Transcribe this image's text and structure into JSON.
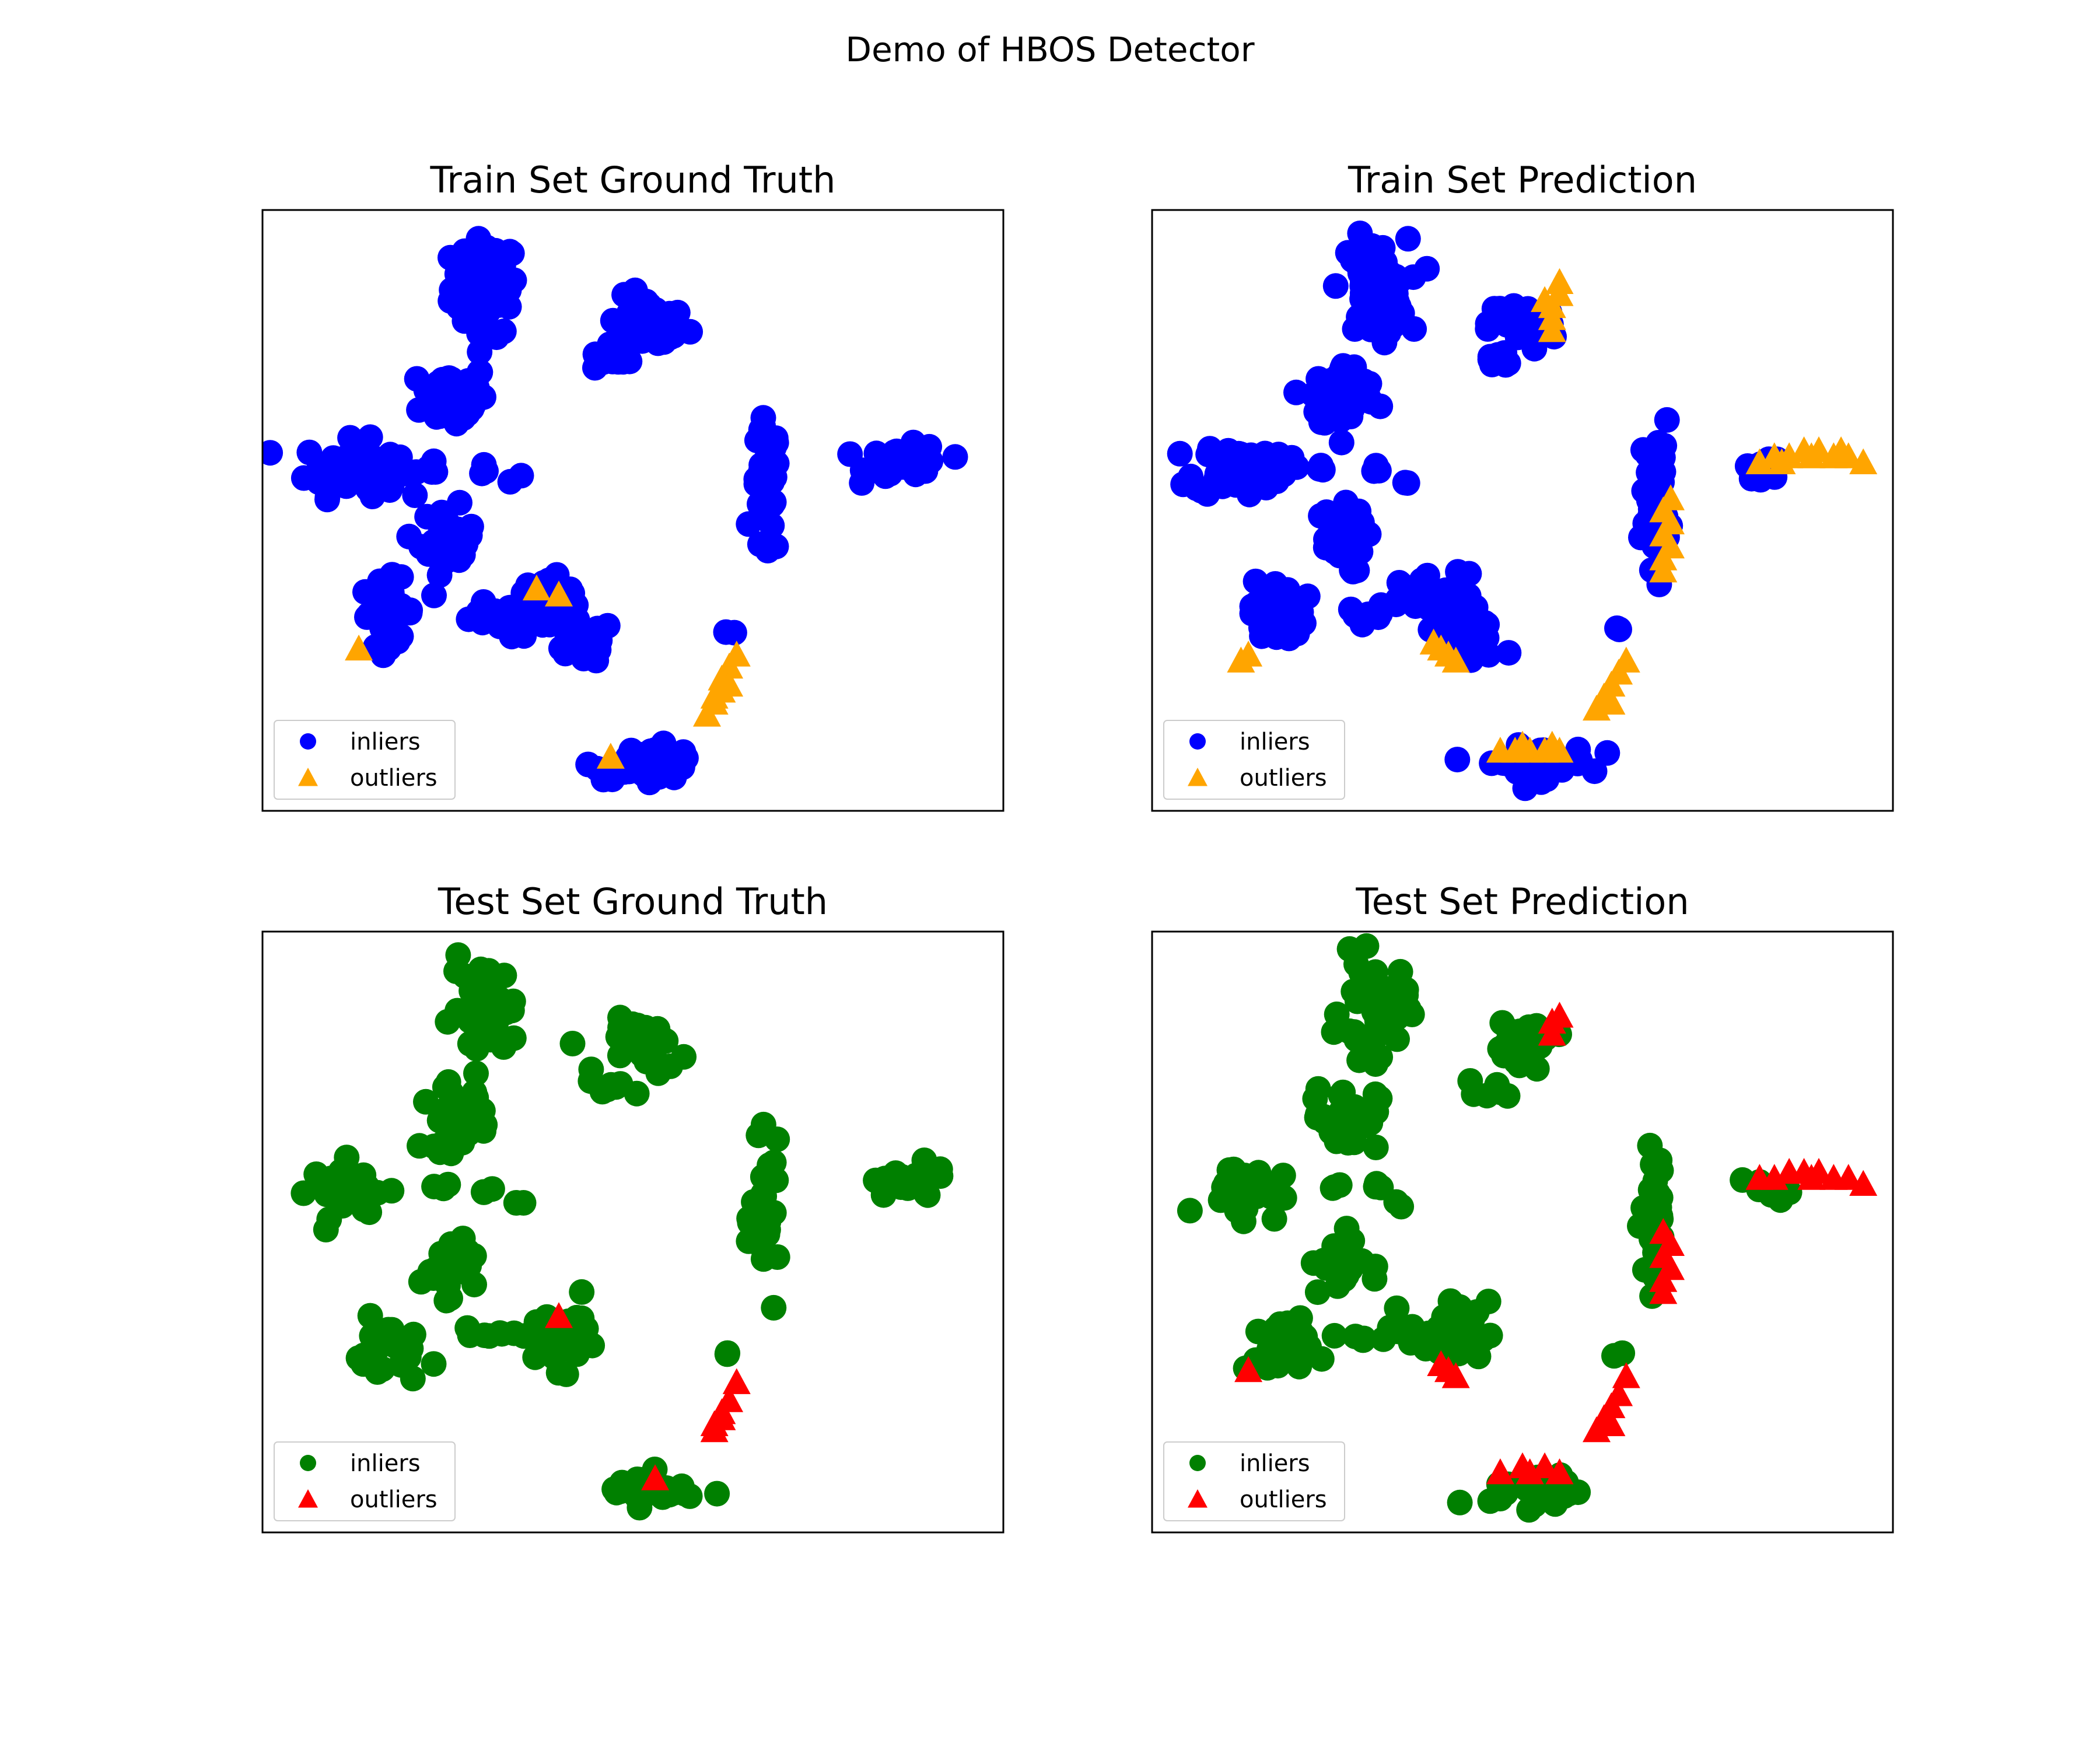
{
  "figure": {
    "title": "Demo of HBOS Detector"
  },
  "colors": {
    "train_inlier": "#0000ff",
    "train_outlier": "#ffa500",
    "test_inlier": "#008000",
    "test_outlier": "#ff0000"
  },
  "chart_data": [
    {
      "type": "scatter",
      "title": "Train Set Ground Truth",
      "xlim": [
        0,
        100
      ],
      "ylim": [
        0,
        100
      ],
      "grid": false,
      "axes_ticks": false,
      "legend": {
        "position": "lower-left",
        "entries": [
          {
            "label": "inliers",
            "marker": "circle",
            "color": "#0000ff"
          },
          {
            "label": "outliers",
            "marker": "triangle",
            "color": "#ffa500"
          }
        ]
      },
      "series": [
        {
          "name": "inliers",
          "marker": "circle",
          "color": "#0000ff",
          "clusters": [
            {
              "cx": 30,
              "cy": 87,
              "rx": 5,
              "ry": 9,
              "n": 70
            },
            {
              "cx": 52,
              "cy": 81,
              "rx": 6,
              "ry": 5,
              "n": 40
            },
            {
              "cx": 47,
              "cy": 75,
              "rx": 3,
              "ry": 2,
              "n": 10
            },
            {
              "cx": 26,
              "cy": 69,
              "rx": 5,
              "ry": 6,
              "n": 55
            },
            {
              "cx": 12,
              "cy": 57,
              "rx": 7,
              "ry": 5,
              "n": 55
            },
            {
              "cx": 23,
              "cy": 57,
              "rx": 1.5,
              "ry": 1.5,
              "n": 4
            },
            {
              "cx": 30,
              "cy": 57,
              "rx": 1.2,
              "ry": 1.5,
              "n": 3
            },
            {
              "cx": 34,
              "cy": 55,
              "rx": 1,
              "ry": 1,
              "n": 2
            },
            {
              "cx": 25,
              "cy": 45,
              "rx": 4,
              "ry": 6,
              "n": 35
            },
            {
              "cx": 17,
              "cy": 33,
              "rx": 4,
              "ry": 6,
              "n": 35
            },
            {
              "cx": 29,
              "cy": 33,
              "rx": 3,
              "ry": 2,
              "n": 8
            },
            {
              "cx": 39,
              "cy": 34,
              "rx": 6,
              "ry": 6,
              "n": 45
            },
            {
              "cx": 43,
              "cy": 28,
              "rx": 5,
              "ry": 4,
              "n": 30
            },
            {
              "cx": 68,
              "cy": 53,
              "rx": 2,
              "ry": 13,
              "n": 40
            },
            {
              "cx": 87,
              "cy": 58,
              "rx": 6,
              "ry": 3,
              "n": 40
            },
            {
              "cx": 63,
              "cy": 30,
              "rx": 1,
              "ry": 1,
              "n": 2
            },
            {
              "cx": 52,
              "cy": 8,
              "rx": 8,
              "ry": 3,
              "n": 45
            }
          ]
        },
        {
          "name": "outliers",
          "marker": "triangle",
          "color": "#ffa500",
          "points": [
            [
              37,
              37
            ],
            [
              40,
              36
            ],
            [
              13,
              27
            ],
            [
              47,
              9
            ],
            [
              60,
              16
            ],
            [
              61,
              18
            ],
            [
              62,
              20
            ],
            [
              62,
              22
            ],
            [
              63,
              24
            ],
            [
              64,
              26
            ],
            [
              61,
              19
            ],
            [
              63,
              21
            ]
          ]
        }
      ]
    },
    {
      "type": "scatter",
      "title": "Train Set Prediction",
      "xlim": [
        0,
        100
      ],
      "ylim": [
        0,
        100
      ],
      "grid": false,
      "axes_ticks": false,
      "legend": {
        "position": "lower-left",
        "entries": [
          {
            "label": "inliers",
            "marker": "circle",
            "color": "#0000ff"
          },
          {
            "label": "outliers",
            "marker": "triangle",
            "color": "#ffa500"
          }
        ]
      },
      "series": [
        {
          "name": "inliers",
          "marker": "circle",
          "color": "#0000ff",
          "clusters": [
            {
              "cx": 30,
              "cy": 87,
              "rx": 5,
              "ry": 9,
              "n": 70
            },
            {
              "cx": 50,
              "cy": 81,
              "rx": 5,
              "ry": 5,
              "n": 35
            },
            {
              "cx": 47,
              "cy": 75,
              "rx": 3,
              "ry": 2,
              "n": 10
            },
            {
              "cx": 26,
              "cy": 69,
              "rx": 5,
              "ry": 6,
              "n": 55
            },
            {
              "cx": 12,
              "cy": 57,
              "rx": 7,
              "ry": 5,
              "n": 55
            },
            {
              "cx": 23,
              "cy": 57,
              "rx": 1.5,
              "ry": 1.5,
              "n": 4
            },
            {
              "cx": 30,
              "cy": 57,
              "rx": 1.2,
              "ry": 1.5,
              "n": 3
            },
            {
              "cx": 34,
              "cy": 55,
              "rx": 1,
              "ry": 1,
              "n": 2
            },
            {
              "cx": 25,
              "cy": 45,
              "rx": 4,
              "ry": 6,
              "n": 35
            },
            {
              "cx": 17,
              "cy": 33,
              "rx": 4,
              "ry": 6,
              "n": 35
            },
            {
              "cx": 29,
              "cy": 33,
              "rx": 3,
              "ry": 2,
              "n": 8
            },
            {
              "cx": 39,
              "cy": 34,
              "rx": 6,
              "ry": 6,
              "n": 45
            },
            {
              "cx": 43,
              "cy": 28,
              "rx": 5,
              "ry": 4,
              "n": 30
            },
            {
              "cx": 68,
              "cy": 53,
              "rx": 2,
              "ry": 13,
              "n": 40
            },
            {
              "cx": 83,
              "cy": 57,
              "rx": 3,
              "ry": 2,
              "n": 15
            },
            {
              "cx": 63,
              "cy": 30,
              "rx": 1,
              "ry": 1,
              "n": 2
            },
            {
              "cx": 52,
              "cy": 8,
              "rx": 8,
              "ry": 3,
              "n": 45
            }
          ]
        },
        {
          "name": "outliers",
          "marker": "triangle",
          "color": "#ffa500",
          "points": [
            [
              54,
              82
            ],
            [
              54,
              84
            ],
            [
              55,
              86
            ],
            [
              54,
              80
            ],
            [
              55,
              88
            ],
            [
              53,
              85
            ],
            [
              82,
              58
            ],
            [
              84,
              59
            ],
            [
              86,
              59
            ],
            [
              88,
              60
            ],
            [
              90,
              60
            ],
            [
              92,
              59
            ],
            [
              94,
              59
            ],
            [
              96,
              58
            ],
            [
              85,
              58
            ],
            [
              89,
              59
            ],
            [
              93,
              60
            ],
            [
              69,
              42
            ],
            [
              70,
              44
            ],
            [
              69,
              46
            ],
            [
              70,
              48
            ],
            [
              69,
              50
            ],
            [
              70,
              52
            ],
            [
              69,
              40
            ],
            [
              39,
              27
            ],
            [
              40,
              26
            ],
            [
              38,
              28
            ],
            [
              41,
              25
            ],
            [
              13,
              26
            ],
            [
              12,
              25
            ],
            [
              60,
              17
            ],
            [
              61,
              19
            ],
            [
              62,
              21
            ],
            [
              63,
              23
            ],
            [
              64,
              25
            ],
            [
              62,
              18
            ],
            [
              47,
              10
            ],
            [
              49,
              10
            ],
            [
              51,
              10
            ],
            [
              53,
              10
            ],
            [
              55,
              10
            ],
            [
              50,
              11
            ],
            [
              54,
              11
            ]
          ]
        }
      ]
    },
    {
      "type": "scatter",
      "title": "Test Set Ground Truth",
      "xlim": [
        0,
        100
      ],
      "ylim": [
        0,
        100
      ],
      "grid": false,
      "axes_ticks": false,
      "legend": {
        "position": "lower-left",
        "entries": [
          {
            "label": "inliers",
            "marker": "circle",
            "color": "#008000"
          },
          {
            "label": "outliers",
            "marker": "triangle",
            "color": "#ff0000"
          }
        ]
      },
      "series": [
        {
          "name": "inliers",
          "marker": "circle",
          "color": "#008000",
          "clusters": [
            {
              "cx": 30,
              "cy": 87,
              "rx": 5,
              "ry": 9,
              "n": 45
            },
            {
              "cx": 52,
              "cy": 81,
              "rx": 6,
              "ry": 5,
              "n": 28
            },
            {
              "cx": 47,
              "cy": 74,
              "rx": 3,
              "ry": 2,
              "n": 6
            },
            {
              "cx": 26,
              "cy": 69,
              "rx": 5,
              "ry": 6,
              "n": 35
            },
            {
              "cx": 12,
              "cy": 57,
              "rx": 6,
              "ry": 5,
              "n": 35
            },
            {
              "cx": 24,
              "cy": 57,
              "rx": 1.5,
              "ry": 1.5,
              "n": 3
            },
            {
              "cx": 30,
              "cy": 57,
              "rx": 1.2,
              "ry": 1.5,
              "n": 3
            },
            {
              "cx": 34,
              "cy": 55,
              "rx": 1,
              "ry": 1,
              "n": 2
            },
            {
              "cx": 25,
              "cy": 45,
              "rx": 4,
              "ry": 6,
              "n": 25
            },
            {
              "cx": 17,
              "cy": 30,
              "rx": 5,
              "ry": 6,
              "n": 25
            },
            {
              "cx": 30,
              "cy": 33,
              "rx": 5,
              "ry": 2,
              "n": 8
            },
            {
              "cx": 40,
              "cy": 33,
              "rx": 6,
              "ry": 6,
              "n": 32
            },
            {
              "cx": 68,
              "cy": 52,
              "rx": 2,
              "ry": 13,
              "n": 30
            },
            {
              "cx": 87,
              "cy": 58,
              "rx": 6,
              "ry": 3,
              "n": 28
            },
            {
              "cx": 63,
              "cy": 30,
              "rx": 1,
              "ry": 1,
              "n": 2
            },
            {
              "cx": 52,
              "cy": 7,
              "rx": 7,
              "ry": 3,
              "n": 30
            }
          ]
        },
        {
          "name": "outliers",
          "marker": "triangle",
          "color": "#ff0000",
          "points": [
            [
              40,
              36
            ],
            [
              53,
              9
            ],
            [
              61,
              18
            ],
            [
              62,
              20
            ],
            [
              63,
              22
            ],
            [
              64,
              25
            ],
            [
              62,
              19
            ],
            [
              61,
              17
            ]
          ]
        }
      ]
    },
    {
      "type": "scatter",
      "title": "Test Set Prediction",
      "xlim": [
        0,
        100
      ],
      "ylim": [
        0,
        100
      ],
      "grid": false,
      "axes_ticks": false,
      "legend": {
        "position": "lower-left",
        "entries": [
          {
            "label": "inliers",
            "marker": "circle",
            "color": "#008000"
          },
          {
            "label": "outliers",
            "marker": "triangle",
            "color": "#ff0000"
          }
        ]
      },
      "series": [
        {
          "name": "inliers",
          "marker": "circle",
          "color": "#008000",
          "clusters": [
            {
              "cx": 30,
              "cy": 87,
              "rx": 5,
              "ry": 9,
              "n": 45
            },
            {
              "cx": 50,
              "cy": 81,
              "rx": 5,
              "ry": 5,
              "n": 25
            },
            {
              "cx": 47,
              "cy": 74,
              "rx": 3,
              "ry": 2,
              "n": 6
            },
            {
              "cx": 26,
              "cy": 69,
              "rx": 5,
              "ry": 6,
              "n": 35
            },
            {
              "cx": 12,
              "cy": 57,
              "rx": 6,
              "ry": 5,
              "n": 35
            },
            {
              "cx": 24,
              "cy": 57,
              "rx": 1.5,
              "ry": 1.5,
              "n": 3
            },
            {
              "cx": 30,
              "cy": 57,
              "rx": 1.2,
              "ry": 1.5,
              "n": 3
            },
            {
              "cx": 34,
              "cy": 55,
              "rx": 1,
              "ry": 1,
              "n": 2
            },
            {
              "cx": 25,
              "cy": 45,
              "rx": 4,
              "ry": 6,
              "n": 25
            },
            {
              "cx": 17,
              "cy": 30,
              "rx": 5,
              "ry": 6,
              "n": 25
            },
            {
              "cx": 30,
              "cy": 33,
              "rx": 5,
              "ry": 2,
              "n": 8
            },
            {
              "cx": 40,
              "cy": 33,
              "rx": 6,
              "ry": 6,
              "n": 32
            },
            {
              "cx": 68,
              "cy": 52,
              "rx": 2,
              "ry": 13,
              "n": 30
            },
            {
              "cx": 83,
              "cy": 57,
              "rx": 3,
              "ry": 2,
              "n": 10
            },
            {
              "cx": 63,
              "cy": 30,
              "rx": 1,
              "ry": 1,
              "n": 2
            },
            {
              "cx": 52,
              "cy": 7,
              "rx": 7,
              "ry": 3,
              "n": 30
            }
          ]
        },
        {
          "name": "outliers",
          "marker": "triangle",
          "color": "#ff0000",
          "points": [
            [
              54,
              83
            ],
            [
              54,
              85
            ],
            [
              55,
              86
            ],
            [
              82,
              59
            ],
            [
              84,
              59
            ],
            [
              86,
              60
            ],
            [
              88,
              60
            ],
            [
              90,
              60
            ],
            [
              92,
              59
            ],
            [
              94,
              59
            ],
            [
              96,
              58
            ],
            [
              89,
              59
            ],
            [
              69,
              42
            ],
            [
              70,
              44
            ],
            [
              69,
              46
            ],
            [
              70,
              48
            ],
            [
              69,
              50
            ],
            [
              69,
              40
            ],
            [
              39,
              28
            ],
            [
              40,
              27
            ],
            [
              41,
              26
            ],
            [
              13,
              27
            ],
            [
              60,
              17
            ],
            [
              61,
              19
            ],
            [
              62,
              21
            ],
            [
              63,
              23
            ],
            [
              64,
              26
            ],
            [
              62,
              18
            ],
            [
              47,
              10
            ],
            [
              50,
              11
            ],
            [
              53,
              11
            ],
            [
              55,
              10
            ],
            [
              51,
              10
            ]
          ]
        }
      ]
    }
  ]
}
